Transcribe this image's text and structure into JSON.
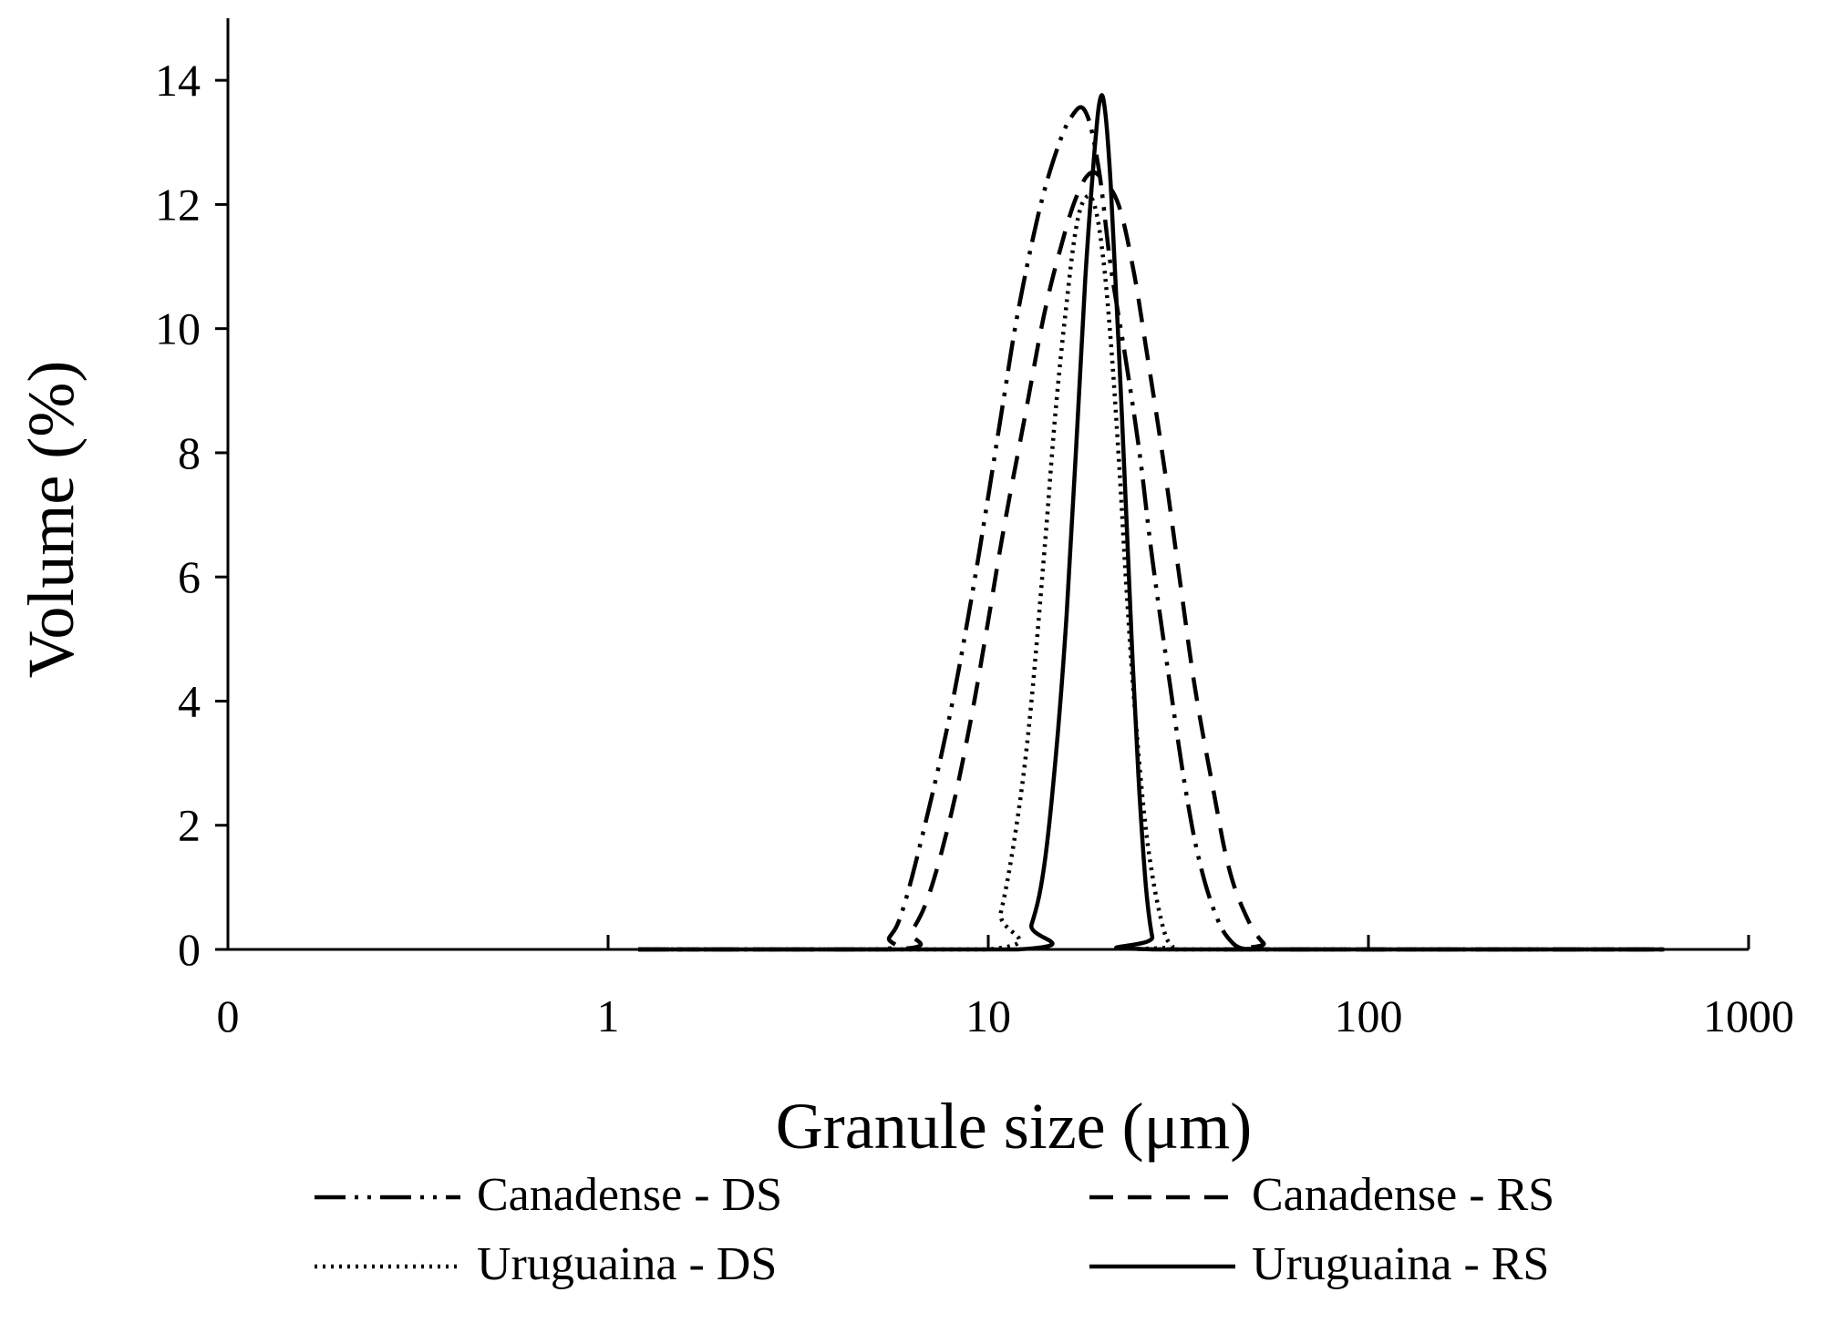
{
  "chart_data": {
    "type": "line",
    "title": "",
    "xlabel": "Granule size (μm)",
    "ylabel": "Volume (%)",
    "x_scale": "log",
    "xlim": [
      0.1,
      1000
    ],
    "ylim": [
      0,
      15
    ],
    "x_ticks": [
      0.1,
      1,
      10,
      100,
      1000
    ],
    "x_tick_labels": [
      "0",
      "1",
      "10",
      "100",
      "1000"
    ],
    "y_ticks": [
      0,
      2,
      4,
      6,
      8,
      10,
      12,
      14
    ],
    "y_tick_labels": [
      "0",
      "2",
      "4",
      "6",
      "8",
      "10",
      "12",
      "14"
    ],
    "grid": false,
    "legend_position": "bottom",
    "series": [
      {
        "name": "Canadense - DS",
        "dash": "long-dash-dot-dot",
        "x": [
          1.2,
          5.0,
          5.5,
          6.0,
          7.0,
          8.0,
          9.0,
          10.0,
          11.0,
          12.0,
          13.5,
          15.0,
          16.5,
          18.0,
          19.5,
          21.0,
          23.0,
          25.0,
          27.0,
          30.0,
          33.0,
          36.0,
          40.0,
          44.0,
          48.0,
          50.0,
          600.0
        ],
        "y": [
          0,
          0,
          0.2,
          0.7,
          2.3,
          3.9,
          5.6,
          7.3,
          8.9,
          10.3,
          11.8,
          12.8,
          13.4,
          13.5,
          12.6,
          11.0,
          9.5,
          8.0,
          6.3,
          4.3,
          2.6,
          1.4,
          0.5,
          0.1,
          0,
          0,
          0
        ]
      },
      {
        "name": "Canadense - RS",
        "dash": "dashed",
        "x": [
          1.2,
          5.7,
          6.3,
          7.0,
          8.0,
          9.0,
          10.0,
          11.0,
          12.5,
          14.0,
          15.5,
          17.0,
          18.5,
          20.0,
          22.0,
          24.0,
          26.0,
          29.0,
          32.0,
          35.0,
          39.0,
          43.0,
          48.0,
          53.0,
          57.0,
          600.0
        ],
        "y": [
          0,
          0,
          0.3,
          0.9,
          2.2,
          3.7,
          5.3,
          6.8,
          8.6,
          10.2,
          11.3,
          12.1,
          12.5,
          12.4,
          12.0,
          11.0,
          9.7,
          7.8,
          5.9,
          4.2,
          2.6,
          1.3,
          0.5,
          0.1,
          0,
          0
        ]
      },
      {
        "name": "Uruguaina - DS",
        "dash": "dotted",
        "x": [
          1.2,
          10.0,
          10.8,
          11.8,
          12.8,
          14.0,
          15.0,
          16.0,
          17.0,
          18.0,
          19.0,
          20.0,
          21.0,
          22.0,
          23.0,
          24.0,
          25.5,
          27.0,
          29.0,
          30.5,
          31.5,
          600.0
        ],
        "y": [
          0,
          0,
          0.6,
          1.9,
          3.6,
          6.3,
          8.6,
          10.3,
          11.6,
          12.1,
          12.0,
          11.2,
          9.8,
          8.0,
          6.0,
          4.3,
          2.4,
          1.2,
          0.3,
          0.05,
          0,
          0
        ]
      },
      {
        "name": "Uruguaina - RS",
        "dash": "solid",
        "x": [
          1.2,
          12.0,
          13.0,
          14.0,
          15.0,
          16.0,
          17.0,
          18.0,
          19.0,
          19.7,
          20.3,
          21.0,
          22.0,
          23.0,
          24.0,
          25.0,
          26.0,
          27.0,
          28.0,
          600.0
        ],
        "y": [
          0,
          0,
          0.4,
          1.3,
          3.0,
          5.2,
          8.0,
          10.8,
          12.8,
          13.7,
          13.5,
          12.3,
          9.8,
          7.2,
          4.6,
          2.5,
          1.0,
          0.2,
          0,
          0
        ]
      }
    ]
  }
}
